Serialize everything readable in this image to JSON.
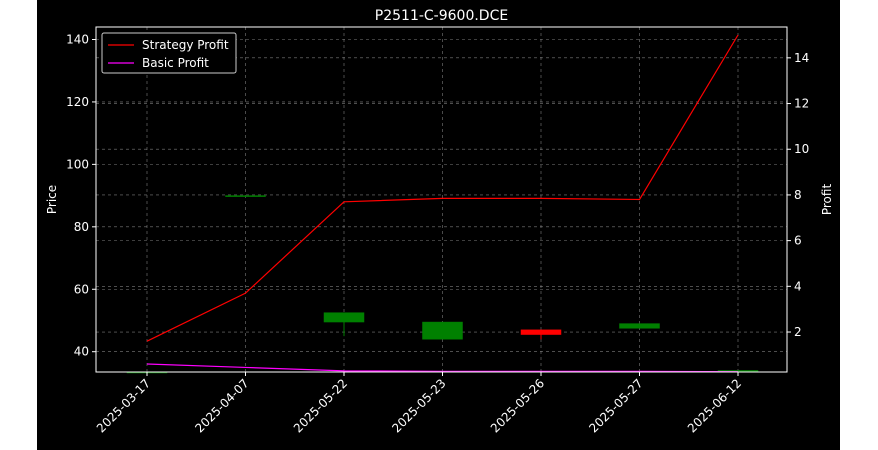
{
  "chart_data": {
    "type": "candlestick+line",
    "title": "P2511-C-9600.DCE",
    "xlabel": "",
    "ylabel_left": "Price",
    "ylabel_right": "Profit",
    "categories": [
      "2025-03-17",
      "2025-04-07",
      "2025-05-22",
      "2025-05-23",
      "2025-05-26",
      "2025-05-27",
      "2025-06-12"
    ],
    "ylim_left": [
      33.5,
      144
    ],
    "ylim_right": [
      0.25,
      15.35
    ],
    "yticks_left": [
      40,
      60,
      80,
      100,
      120,
      140
    ],
    "yticks_right": [
      2,
      4,
      6,
      8,
      10,
      12,
      14
    ],
    "grid": true,
    "legend_position": "top-left",
    "candles": [
      {
        "date": "2025-03-17",
        "open": 33.5,
        "high": 33.5,
        "low": 33.5,
        "close": 33.5
      },
      {
        "date": "2025-04-07",
        "open": 90.0,
        "high": 90.0,
        "low": 90.0,
        "close": 90.0
      },
      {
        "date": "2025-05-22",
        "open": 49.5,
        "high": 52.5,
        "low": 45.0,
        "close": 52.5
      },
      {
        "date": "2025-05-23",
        "open": 44.0,
        "high": 49.5,
        "low": 44.0,
        "close": 49.5
      },
      {
        "date": "2025-05-26",
        "open": 47.0,
        "high": 47.0,
        "low": 44.0,
        "close": 45.5
      },
      {
        "date": "2025-05-27",
        "open": 47.5,
        "high": 49.0,
        "low": 47.5,
        "close": 49.0
      },
      {
        "date": "2025-06-12",
        "open": 34.0,
        "high": 34.0,
        "low": 34.0,
        "close": 34.0
      }
    ],
    "series": [
      {
        "name": "Strategy Profit",
        "color": "#ff0000",
        "axis": "right",
        "values": [
          1.6,
          3.7,
          7.7,
          7.85,
          7.85,
          7.8,
          15.0
        ]
      },
      {
        "name": "Basic Profit",
        "color": "#ff00ff",
        "axis": "right",
        "values": [
          0.6,
          0.45,
          0.3,
          0.28,
          0.28,
          0.28,
          0.26
        ]
      }
    ],
    "candle_colors": {
      "up": "#008000",
      "down": "#ff0000"
    }
  }
}
